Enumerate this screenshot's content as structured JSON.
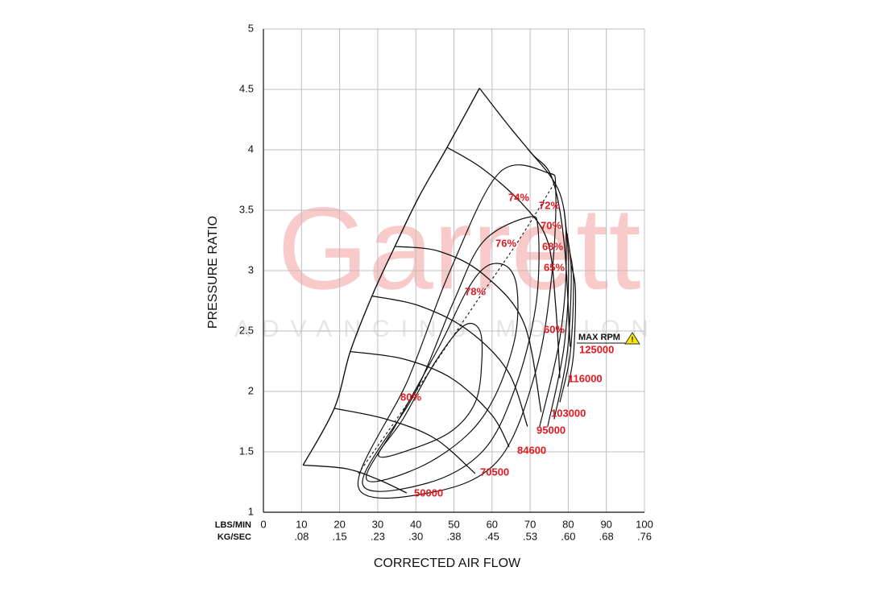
{
  "chart_data": {
    "type": "line",
    "x_label": "CORRECTED AIR FLOW",
    "y_label": "PRESSURE RATIO",
    "x_unit_label": "LBS/MIN",
    "x2_unit_label": "KG/SEC",
    "xlim": [
      0,
      100
    ],
    "ylim": [
      1,
      5
    ],
    "xticks": [
      0,
      10,
      20,
      30,
      40,
      50,
      60,
      70,
      80,
      90,
      100
    ],
    "yticks": [
      1,
      1.5,
      2,
      2.5,
      3,
      3.5,
      4,
      4.5,
      5
    ],
    "kg_ticks": [
      {
        "value": 10,
        "label": ".08"
      },
      {
        "value": 20,
        "label": ".15"
      },
      {
        "value": 30,
        "label": ".23"
      },
      {
        "value": 40,
        "label": ".30"
      },
      {
        "value": 50,
        "label": ".38"
      },
      {
        "value": 60,
        "label": ".45"
      },
      {
        "value": 70,
        "label": ".53"
      },
      {
        "value": 80,
        "label": ".60"
      },
      {
        "value": 90,
        "label": ".68"
      },
      {
        "value": 100,
        "label": ".76"
      }
    ],
    "grid": true,
    "line_color": "#111111",
    "label_color": "#e3191f",
    "max_rpm_label": "MAX RPM",
    "surge_line": {
      "x": [
        10.4,
        18.6,
        22.8,
        28.5,
        34.5,
        40.8,
        48.2,
        56.7
      ],
      "y": [
        1.39,
        1.86,
        2.33,
        2.79,
        3.2,
        3.61,
        4.02,
        4.51
      ]
    },
    "peak_efficiency_line": {
      "x": [
        24.9,
        40.0,
        55.0,
        67.0,
        76.7
      ],
      "y": [
        1.32,
        2.0,
        2.7,
        3.25,
        3.74
      ]
    },
    "series": [
      {
        "name": "50000",
        "x": [
          10.4,
          21.8,
          30.2,
          37.6
        ],
        "y": [
          1.39,
          1.36,
          1.27,
          1.16
        ]
      },
      {
        "name": "70500",
        "x": [
          18.6,
          32.3,
          45.0,
          55.6
        ],
        "y": [
          1.86,
          1.77,
          1.61,
          1.32
        ]
      },
      {
        "name": "84600",
        "x": [
          22.8,
          36.6,
          49.3,
          59.8,
          64.5
        ],
        "y": [
          2.33,
          2.27,
          2.11,
          1.81,
          1.54
        ]
      },
      {
        "name": "95000",
        "x": [
          28.5,
          40.8,
          53.5,
          64.1,
          69.3
        ],
        "y": [
          2.79,
          2.71,
          2.51,
          2.17,
          1.71
        ]
      },
      {
        "name": "103000",
        "x": [
          34.5,
          46.1,
          57.7,
          68.3,
          72.9
        ],
        "y": [
          3.2,
          3.16,
          2.97,
          2.57,
          1.83
        ]
      },
      {
        "name": "116000",
        "x": [
          48.2,
          57.7,
          68.3,
          74.6,
          76.7,
          77.8
        ],
        "y": [
          4.02,
          3.84,
          3.54,
          3.24,
          2.71,
          2.11
        ]
      },
      {
        "name": "125000",
        "x": [
          56.7,
          64.1,
          70.4,
          75.7,
          78.9,
          80.5
        ],
        "y": [
          4.51,
          4.21,
          3.97,
          3.77,
          3.24,
          2.37
        ]
      }
    ],
    "efficiency_islands": [
      {
        "label": "80%",
        "closed": true,
        "x": [
          30.2,
          36.6,
          45.0,
          52.4,
          56.7,
          57.3,
          55.6,
          49.3,
          38.7
        ],
        "y": [
          1.47,
          1.77,
          2.24,
          2.54,
          2.51,
          2.24,
          1.91,
          1.67,
          1.52
        ]
      },
      {
        "label": "78%",
        "closed": true,
        "x": [
          27.1,
          34.5,
          46.1,
          53.5,
          58.8,
          64.1,
          66.6,
          66.0,
          60.9,
          53.5,
          40.8
        ],
        "y": [
          1.27,
          1.71,
          2.37,
          2.84,
          3.04,
          3.03,
          2.84,
          2.44,
          1.97,
          1.64,
          1.37
        ]
      },
      {
        "label": "76%",
        "closed": true,
        "x": [
          26.0,
          40.0,
          50.0,
          57.7,
          69.3,
          72.1,
          71.5,
          66.2,
          57.7,
          42.9
        ],
        "y": [
          1.24,
          2.0,
          2.75,
          3.24,
          3.44,
          3.34,
          2.71,
          2.04,
          1.51,
          1.24
        ]
      },
      {
        "label": "74%",
        "closed": true,
        "x": [
          24.9,
          38.0,
          49.0,
          61.9,
          74.6,
          76.7,
          75.7,
          71.5,
          61.9,
          45.0
        ],
        "y": [
          1.21,
          2.1,
          3.0,
          3.81,
          3.81,
          3.67,
          2.97,
          2.17,
          1.44,
          1.17
        ]
      },
      {
        "label": "72%",
        "closed": false,
        "x": [
          69.3,
          77.8,
          79.5,
          77.8,
          72.5
        ],
        "y": [
          4.01,
          3.64,
          3.11,
          2.44,
          1.71
        ]
      },
      {
        "label": "70%",
        "closed": false,
        "x": [
          78.9,
          80.1,
          78.9,
          74.6
        ],
        "y": [
          3.51,
          3.04,
          2.37,
          1.71
        ]
      },
      {
        "label": "68%",
        "closed": false,
        "x": [
          79.7,
          80.8,
          79.7,
          76.3
        ],
        "y": [
          3.31,
          2.97,
          2.31,
          1.77
        ]
      },
      {
        "label": "65%",
        "closed": false,
        "x": [
          80.3,
          81.4,
          80.5,
          77.8
        ],
        "y": [
          3.17,
          2.91,
          2.31,
          1.91
        ]
      },
      {
        "label": "60%",
        "closed": false,
        "x": [
          80.8,
          81.9,
          81.4,
          79.9
        ],
        "y": [
          3.04,
          2.84,
          2.31,
          2.04
        ]
      }
    ]
  },
  "watermark": {
    "brand": "Garrett",
    "tagline": "ADVANCING MOTION"
  }
}
